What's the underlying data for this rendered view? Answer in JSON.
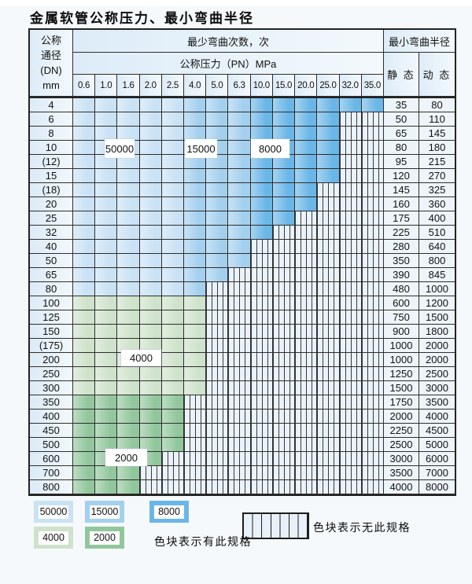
{
  "title": "金属软管公称压力、最小弯曲半径",
  "colors": {
    "blue_50000": "#c9e2f5",
    "blue_15000": "#a3d0ee",
    "blue_8000": "#6ab7e7",
    "green_4000": "#cfe2cb",
    "green_2000": "#92c79d",
    "nospec_bg": "#eaf2fa",
    "grid_line": "#2e2e2e"
  },
  "header": {
    "dn_lines": [
      "公称",
      "通径",
      "(DN)",
      "mm"
    ],
    "bend_cycles_label": "最少弯曲次数，次",
    "pressure_label": "公称压力（PN）MPa",
    "bend_radius_label": "最小弯曲半径",
    "static_label": "静 态",
    "dynamic_label": "动 态",
    "pressure_columns": [
      "0.6",
      "1.0",
      "1.6",
      "2.0",
      "2.5",
      "4.0",
      "5.0",
      "6.3",
      "10.0",
      "15.0",
      "20.0",
      "25.0",
      "32.0",
      "35.0"
    ]
  },
  "blue_zones": {
    "light_through": "2.5",
    "medium_through": "6.3"
  },
  "rows": [
    {
      "dn": "4",
      "static": "35",
      "dynamic": "80",
      "band": "blue",
      "colored_through": "35.0"
    },
    {
      "dn": "6",
      "static": "50",
      "dynamic": "110",
      "band": "blue",
      "colored_through": "25.0"
    },
    {
      "dn": "8",
      "static": "65",
      "dynamic": "145",
      "band": "blue",
      "colored_through": "25.0"
    },
    {
      "dn": "10",
      "static": "80",
      "dynamic": "180",
      "band": "blue",
      "colored_through": "25.0"
    },
    {
      "dn": "(12)",
      "static": "95",
      "dynamic": "215",
      "band": "blue",
      "colored_through": "25.0"
    },
    {
      "dn": "15",
      "static": "120",
      "dynamic": "270",
      "band": "blue",
      "colored_through": "25.0"
    },
    {
      "dn": "(18)",
      "static": "145",
      "dynamic": "325",
      "band": "blue",
      "colored_through": "20.0"
    },
    {
      "dn": "20",
      "static": "160",
      "dynamic": "360",
      "band": "blue",
      "colored_through": "20.0"
    },
    {
      "dn": "25",
      "static": "175",
      "dynamic": "400",
      "band": "blue",
      "colored_through": "15.0"
    },
    {
      "dn": "32",
      "static": "225",
      "dynamic": "510",
      "band": "blue",
      "colored_through": "10.0"
    },
    {
      "dn": "40",
      "static": "280",
      "dynamic": "640",
      "band": "blue",
      "colored_through": "6.3"
    },
    {
      "dn": "50",
      "static": "350",
      "dynamic": "800",
      "band": "blue",
      "colored_through": "6.3"
    },
    {
      "dn": "65",
      "static": "390",
      "dynamic": "845",
      "band": "blue",
      "colored_through": "5.0"
    },
    {
      "dn": "80",
      "static": "480",
      "dynamic": "1000",
      "band": "blue",
      "colored_through": "4.0"
    },
    {
      "dn": "100",
      "static": "600",
      "dynamic": "1200",
      "band": "green_4000",
      "colored_through": "4.0"
    },
    {
      "dn": "125",
      "static": "750",
      "dynamic": "1500",
      "band": "green_4000",
      "colored_through": "4.0"
    },
    {
      "dn": "150",
      "static": "900",
      "dynamic": "1800",
      "band": "green_4000",
      "colored_through": "4.0"
    },
    {
      "dn": "(175)",
      "static": "1000",
      "dynamic": "2000",
      "band": "green_4000",
      "colored_through": "4.0"
    },
    {
      "dn": "200",
      "static": "1000",
      "dynamic": "2000",
      "band": "green_4000",
      "colored_through": "4.0"
    },
    {
      "dn": "250",
      "static": "1250",
      "dynamic": "2500",
      "band": "green_4000",
      "colored_through": "4.0"
    },
    {
      "dn": "300",
      "static": "1500",
      "dynamic": "3000",
      "band": "green_4000",
      "colored_through": "4.0"
    },
    {
      "dn": "350",
      "static": "1750",
      "dynamic": "3500",
      "band": "green_2000",
      "colored_through": "2.5"
    },
    {
      "dn": "400",
      "static": "2000",
      "dynamic": "4000",
      "band": "green_2000",
      "colored_through": "2.5"
    },
    {
      "dn": "450",
      "static": "2250",
      "dynamic": "4500",
      "band": "green_2000",
      "colored_through": "2.5"
    },
    {
      "dn": "500",
      "static": "2500",
      "dynamic": "5000",
      "band": "green_2000",
      "colored_through": "2.5"
    },
    {
      "dn": "600",
      "static": "3000",
      "dynamic": "6000",
      "band": "green_2000",
      "colored_through": "2.0"
    },
    {
      "dn": "700",
      "static": "3500",
      "dynamic": "7000",
      "band": "green_2000",
      "colored_through": "1.6"
    },
    {
      "dn": "800",
      "static": "4000",
      "dynamic": "8000",
      "band": "green_2000",
      "colored_through": "1.6"
    }
  ],
  "overlays": [
    {
      "text": "50000"
    },
    {
      "text": "15000"
    },
    {
      "text": "8000"
    },
    {
      "text": "4000"
    },
    {
      "text": "2000"
    }
  ],
  "legend": {
    "swatches": [
      {
        "label": "50000",
        "color_key": "blue_50000"
      },
      {
        "label": "15000",
        "color_key": "blue_15000"
      },
      {
        "label": "8000",
        "color_key": "blue_8000"
      },
      {
        "label": "4000",
        "color_key": "green_4000"
      },
      {
        "label": "2000",
        "color_key": "green_2000"
      }
    ],
    "has_spec_text": "色块表示有此规格",
    "no_spec_text": "色块表示无此规格"
  }
}
